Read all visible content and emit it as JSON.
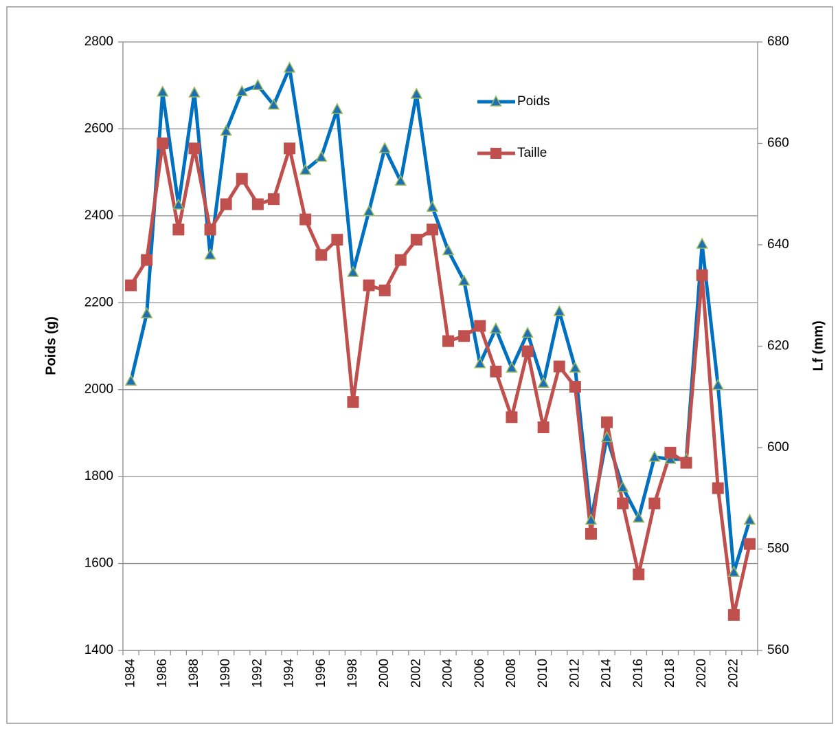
{
  "chart_data": {
    "type": "line",
    "categories": [
      "1984",
      null,
      "1986",
      null,
      "1988",
      null,
      "1990",
      null,
      "1992",
      null,
      "1994",
      null,
      "1996",
      null,
      "1998",
      null,
      "2000",
      null,
      "2002",
      null,
      "2004",
      null,
      "2006",
      null,
      "2008",
      null,
      "2010",
      null,
      "2012",
      null,
      "2014",
      null,
      "2016",
      null,
      "2018",
      null,
      "2020",
      null,
      "2022",
      null
    ],
    "series": [
      {
        "name": "Poids",
        "color": "#0070c0",
        "marker": "triangle",
        "marker_fill": "#1f6fb4",
        "marker_edge": "#9bbb59",
        "values": [
          2020,
          2175,
          2685,
          2425,
          2683,
          2310,
          2595,
          2686,
          2700,
          2655,
          2740,
          2505,
          2535,
          2645,
          2270,
          2410,
          2555,
          2480,
          2680,
          2420,
          2320,
          2250,
          2060,
          2140,
          2050,
          2130,
          2015,
          2180,
          2050,
          1700,
          1890,
          1775,
          1705,
          1845,
          1840,
          1840,
          2335,
          2010,
          1580,
          1700
        ]
      },
      {
        "name": "Taille",
        "color": "#c0504d",
        "marker": "square",
        "marker_fill": "#c0504d",
        "marker_edge": "#c0504d",
        "axis": "y2",
        "values": [
          632,
          637,
          660,
          643,
          659,
          643,
          648,
          653,
          648,
          649,
          659,
          645,
          638,
          641,
          609,
          632,
          631,
          637,
          641,
          643,
          621,
          622,
          624,
          615,
          606,
          619,
          604,
          616,
          612,
          583,
          605,
          589,
          575,
          589,
          599,
          597,
          634,
          592,
          567,
          581
        ]
      }
    ],
    "ylabel": "Poids (g)",
    "y2label": "Lf (mm)",
    "ylim": [
      1400,
      2800
    ],
    "yticks": [
      1400,
      1600,
      1800,
      2000,
      2200,
      2400,
      2600,
      2800
    ],
    "y2lim": [
      560,
      680
    ],
    "y2ticks": [
      560,
      580,
      600,
      620,
      640,
      660,
      680
    ],
    "grid": true
  }
}
